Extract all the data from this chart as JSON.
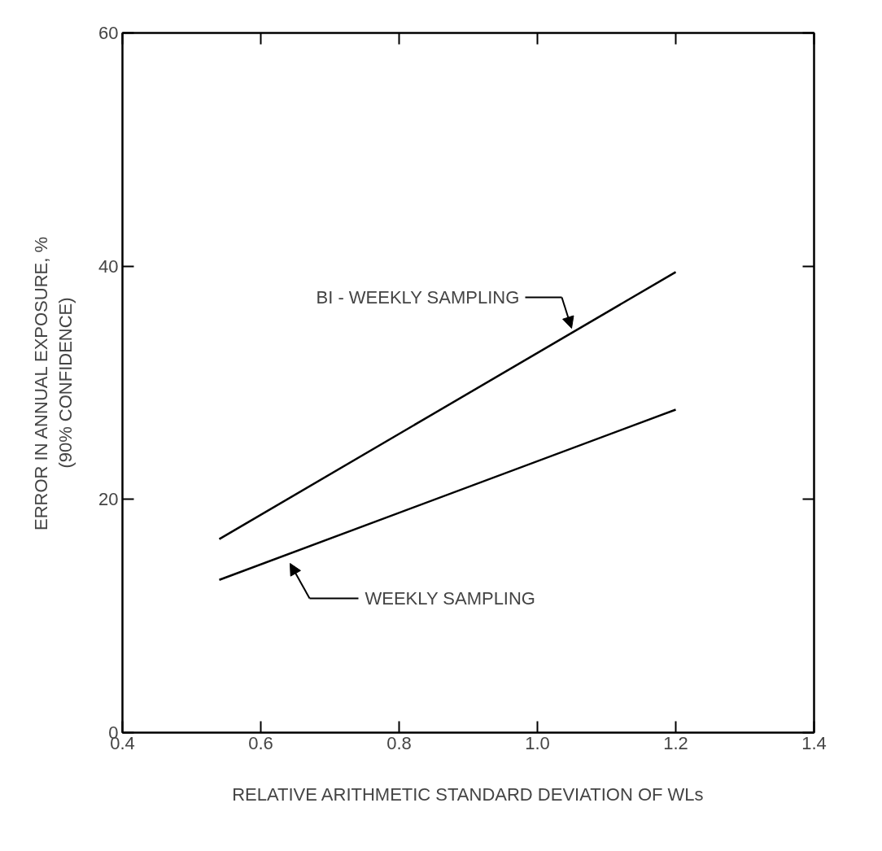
{
  "chart_data": {
    "type": "line",
    "xlabel": "RELATIVE ARITHMETIC STANDARD DEVIATION OF WLs",
    "ylabel": "ERROR IN ANNUAL EXPOSURE, %\n(90% CONFIDENCE)",
    "x": [
      0.54,
      1.2
    ],
    "series": [
      {
        "color": "#000000",
        "values": [
          16.6,
          39.5
        ]
      },
      {
        "color": "#000000",
        "values": [
          13.1,
          27.7
        ]
      }
    ],
    "annotations": [
      "BI - WEEKLY  SAMPLING",
      "WEEKLY  SAMPLING"
    ],
    "xlim": [
      0.4,
      1.4
    ],
    "ylim": [
      0,
      60
    ],
    "xticks": [
      0.4,
      0.6,
      0.8,
      {
        "value": 1.0,
        "label": "1.0"
      },
      1.2,
      1.4
    ],
    "yticks": [
      0,
      20,
      40,
      60
    ],
    "grid": false,
    "marker": "none",
    "line_style": "solid"
  }
}
